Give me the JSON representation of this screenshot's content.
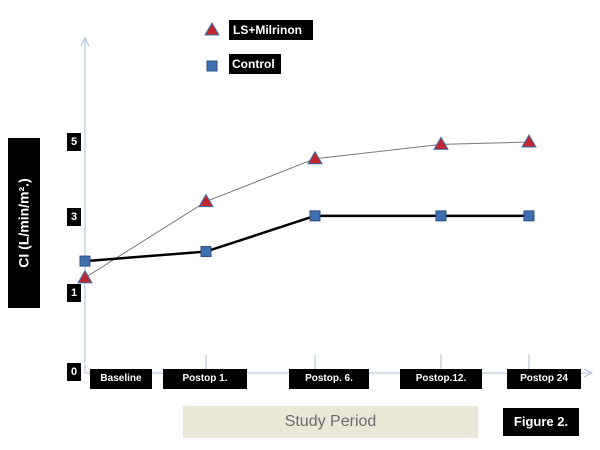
{
  "chart_data": {
    "type": "line",
    "categories": [
      "Baseline",
      "Postop 1.",
      "Postop. 6.",
      "Postop.12.",
      "Postop 24"
    ],
    "series": [
      {
        "name": "LS+Milrinon",
        "values": [
          2.0,
          3.6,
          4.5,
          4.8,
          4.85
        ],
        "marker": "triangle",
        "color": "#c0272d",
        "line_color": "#777777"
      },
      {
        "name": "Control",
        "values": [
          2.35,
          2.55,
          3.3,
          3.3,
          3.3
        ],
        "marker": "square",
        "color": "#3f6fb0",
        "line_color": "#000000"
      }
    ],
    "ylabel": "CI (L/min/m².)",
    "xlabel": "Study Period",
    "yticks": [
      "0",
      "1",
      "3",
      "5"
    ],
    "ylim": [
      0,
      6.3
    ],
    "grid": false,
    "legend_position": "top-center"
  },
  "figure_label": "Figure 2."
}
